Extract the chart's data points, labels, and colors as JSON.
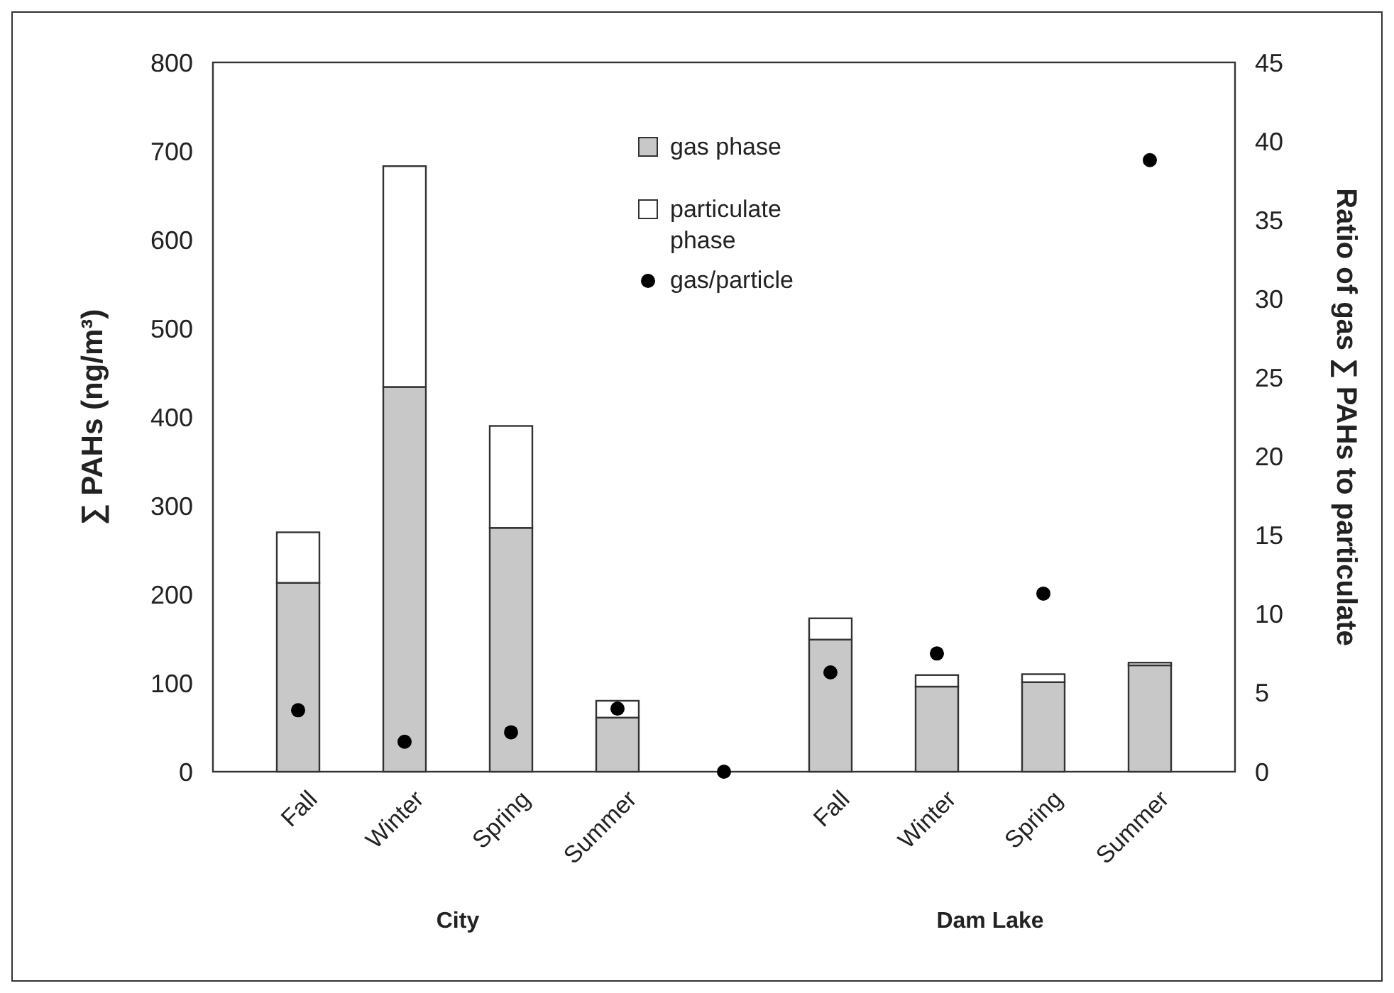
{
  "chart_data": {
    "type": "bar",
    "stacked": true,
    "ylabel": "∑ PAHs (ng/m³)",
    "y2label": "Ratio of gas ∑ PAHs to particulate",
    "categories": [
      "Fall",
      "Winter",
      "Spring",
      "Summer",
      null,
      "Fall",
      "Winter",
      "Spring",
      "Summer"
    ],
    "series": [
      {
        "name": "gas phase",
        "color": "#c8c8c8",
        "values": [
          213,
          434,
          275,
          61,
          null,
          149,
          96,
          101,
          120
        ]
      },
      {
        "name": "particulate phase",
        "color": "#ffffff",
        "values": [
          57,
          249,
          115,
          19,
          null,
          24,
          13,
          9,
          3
        ]
      },
      {
        "name": "gas/particle",
        "type": "scatter",
        "axis": "y2",
        "color": "#000000",
        "values": [
          3.9,
          1.9,
          2.5,
          4.0,
          0,
          6.3,
          7.5,
          11.3,
          38.8
        ]
      }
    ],
    "ylim": [
      0,
      800
    ],
    "yticks": [
      0,
      100,
      200,
      300,
      400,
      500,
      600,
      700,
      800
    ],
    "y2lim": [
      0,
      45
    ],
    "y2ticks": [
      0,
      5,
      10,
      15,
      20,
      25,
      30,
      35,
      40,
      45
    ],
    "grid": false,
    "legend": "top",
    "marker": "circle",
    "annotations": [
      "City",
      "Dam Lake"
    ]
  }
}
